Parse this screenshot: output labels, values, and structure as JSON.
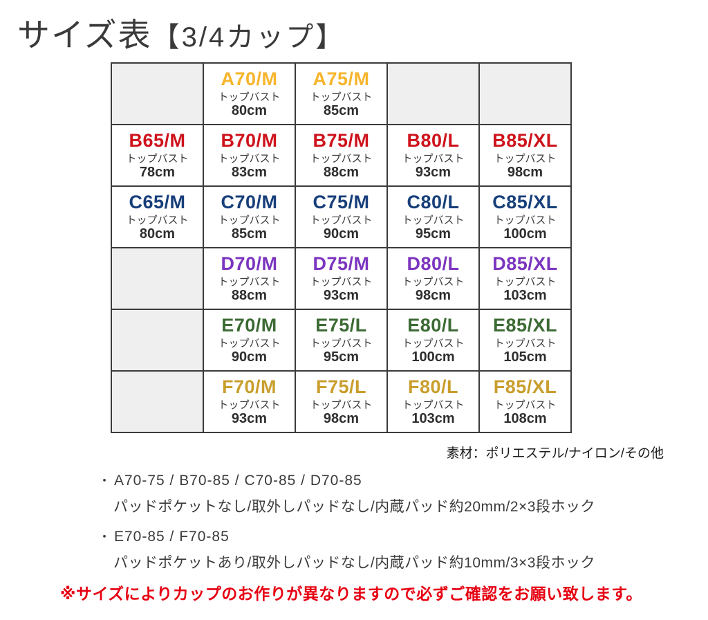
{
  "page": {
    "title_main": "サイズ表",
    "title_bracket": "【3/4カップ】",
    "material_note": "素材：ポリエステル/ナイロン/その他",
    "warning_note": "※サイズによりカップのお作りが異なりますので必ずご確認をお願い致します。",
    "bullet": "・"
  },
  "table": {
    "bust_label": "トップバスト",
    "border_color": "#3b3b3b",
    "empty_cell_color": "#efefef",
    "rows": [
      {
        "cup": "A",
        "color": "#f7b52c",
        "cells": [
          null,
          {
            "size": "A70/M",
            "bust": "80cm"
          },
          {
            "size": "A75/M",
            "bust": "85cm"
          },
          null,
          null
        ]
      },
      {
        "cup": "B",
        "color": "#ce121b",
        "cells": [
          {
            "size": "B65/M",
            "bust": "78cm"
          },
          {
            "size": "B70/M",
            "bust": "83cm"
          },
          {
            "size": "B75/M",
            "bust": "88cm"
          },
          {
            "size": "B80/L",
            "bust": "93cm"
          },
          {
            "size": "B85/XL",
            "bust": "98cm"
          }
        ]
      },
      {
        "cup": "C",
        "color": "#173f7a",
        "cells": [
          {
            "size": "C65/M",
            "bust": "80cm"
          },
          {
            "size": "C70/M",
            "bust": "85cm"
          },
          {
            "size": "C75/M",
            "bust": "90cm"
          },
          {
            "size": "C80/L",
            "bust": "95cm"
          },
          {
            "size": "C85/XL",
            "bust": "100cm"
          }
        ]
      },
      {
        "cup": "D",
        "color": "#7b34bf",
        "cells": [
          null,
          {
            "size": "D70/M",
            "bust": "88cm"
          },
          {
            "size": "D75/M",
            "bust": "93cm"
          },
          {
            "size": "D80/L",
            "bust": "98cm"
          },
          {
            "size": "D85/XL",
            "bust": "103cm"
          }
        ]
      },
      {
        "cup": "E",
        "color": "#3c6a34",
        "cells": [
          null,
          {
            "size": "E70/M",
            "bust": "90cm"
          },
          {
            "size": "E75/L",
            "bust": "95cm"
          },
          {
            "size": "E80/L",
            "bust": "100cm"
          },
          {
            "size": "E85/XL",
            "bust": "105cm"
          }
        ]
      },
      {
        "cup": "F",
        "color": "#c99e2d",
        "cells": [
          null,
          {
            "size": "F70/M",
            "bust": "93cm"
          },
          {
            "size": "F75/L",
            "bust": "98cm"
          },
          {
            "size": "F80/L",
            "bust": "103cm"
          },
          {
            "size": "F85/XL",
            "bust": "108cm"
          }
        ]
      }
    ]
  },
  "notes": [
    {
      "sizes": "A70-75 / B70-85 / C70-85 / D70-85",
      "detail": "パッドポケットなし/取外しパッドなし/内蔵パッド約20mm/2×3段ホック"
    },
    {
      "sizes": "E70-85 / F70-85",
      "detail": "パッドポケットあり/取外しパッドなし/内蔵パッド約10mm/3×3段ホック"
    }
  ]
}
